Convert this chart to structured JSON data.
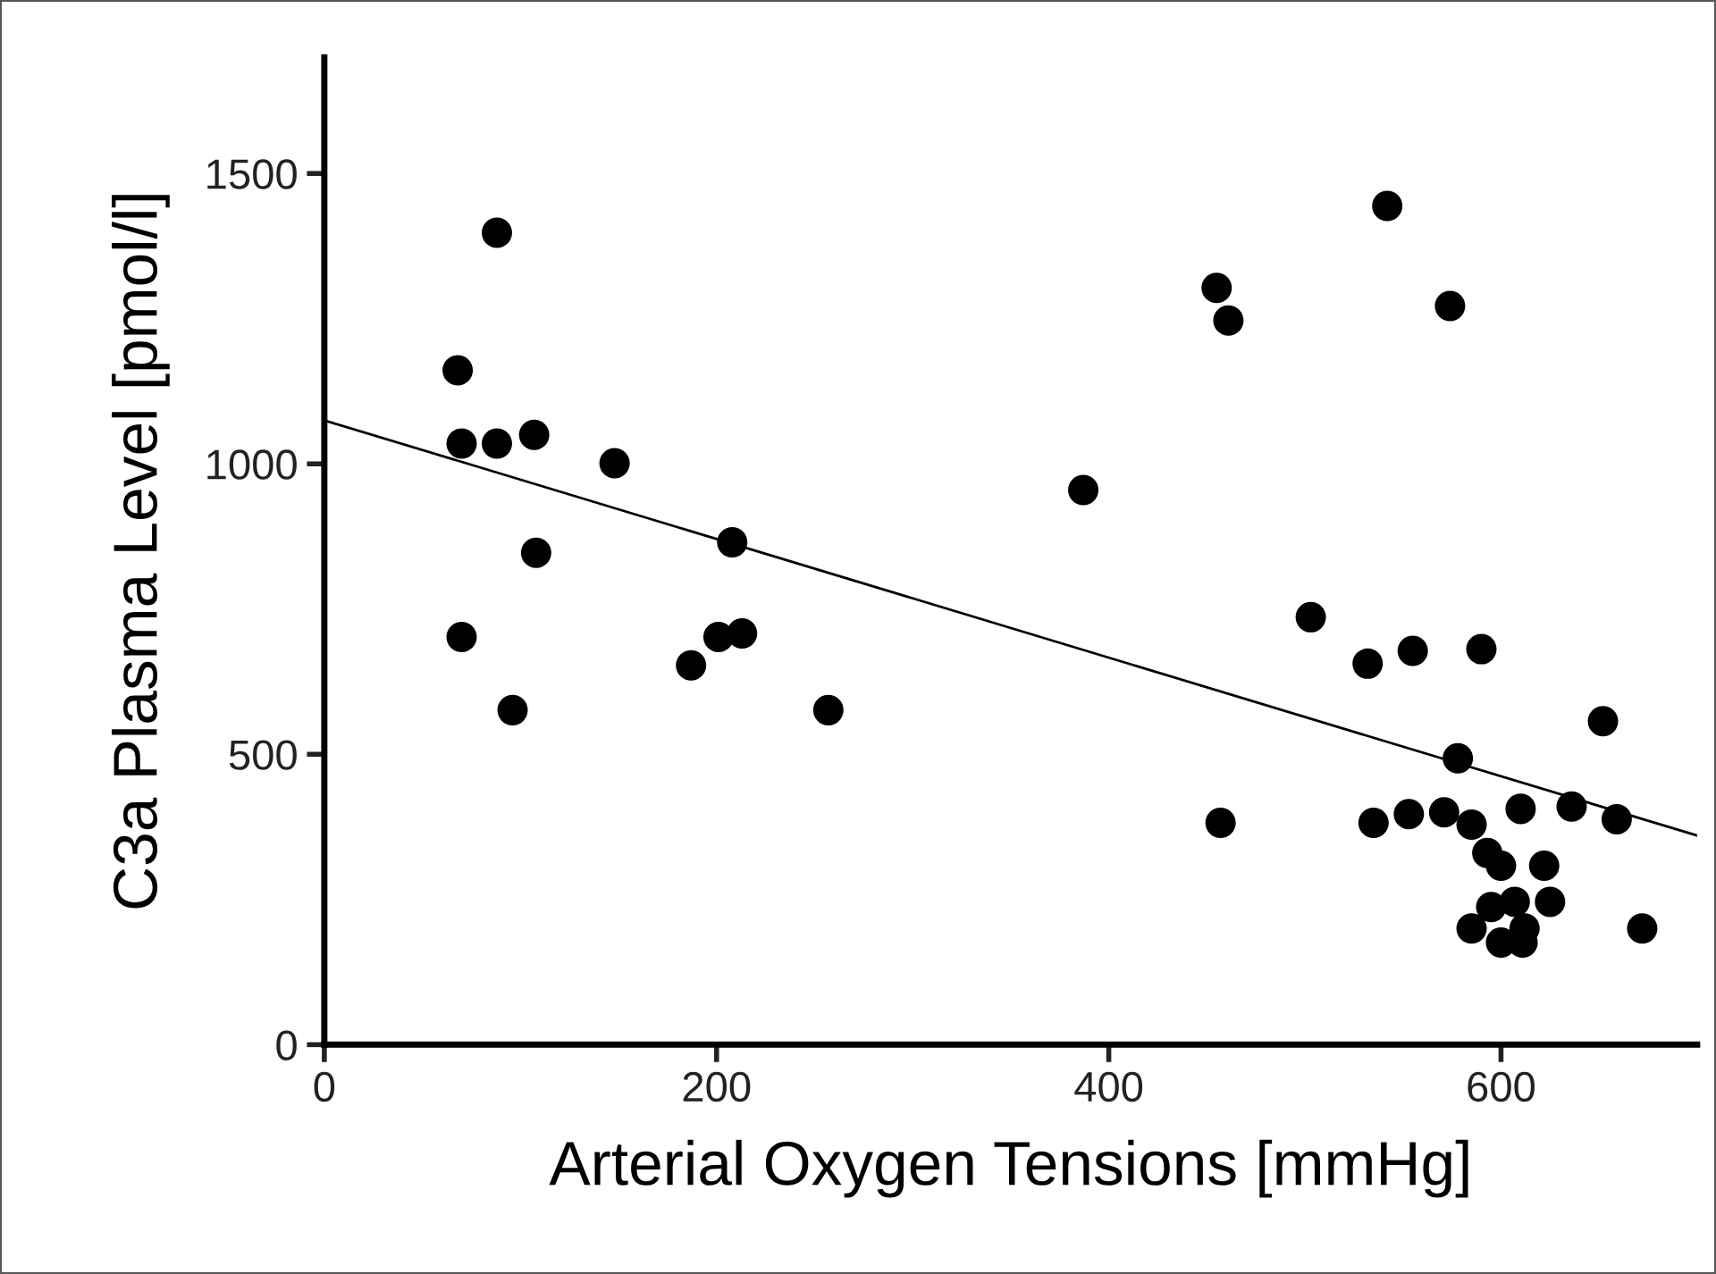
{
  "chart_data": {
    "type": "scatter",
    "xlabel": "Arterial Oxygen Tensions [mmHg]",
    "ylabel": "C3a Plasma Level [pmol/l]",
    "xlim": [
      0,
      700
    ],
    "ylim": [
      0,
      1700
    ],
    "xticks": [
      0,
      200,
      400,
      600
    ],
    "yticks": [
      0,
      500,
      1000,
      1500
    ],
    "grid": false,
    "series": [
      {
        "marker": "circle",
        "color": "#000000",
        "x": [
          68,
          70,
          88,
          107,
          88,
          108,
          70,
          96,
          148,
          187,
          201,
          213,
          208,
          257,
          387,
          455,
          461,
          457,
          503,
          542,
          574,
          532,
          535,
          555,
          553,
          590,
          578,
          571,
          585,
          585,
          593,
          600,
          595,
          600,
          610,
          607,
          612,
          611,
          622,
          625,
          636,
          652,
          659,
          672
        ],
        "values": [
          1161,
          1035,
          1035,
          1050,
          1398,
          847,
          702,
          576,
          1001,
          653,
          702,
          708,
          865,
          576,
          955,
          1303,
          1247,
          382,
          736,
          1444,
          1272,
          656,
          382,
          678,
          397,
          681,
          493,
          400,
          379,
          200,
          330,
          308,
          237,
          176,
          406,
          246,
          200,
          176,
          308,
          246,
          410,
          557,
          388,
          200
        ]
      },
      {
        "type": "line",
        "color": "#000000",
        "x": [
          0,
          700
        ],
        "values": [
          1075,
          360
        ]
      }
    ]
  }
}
